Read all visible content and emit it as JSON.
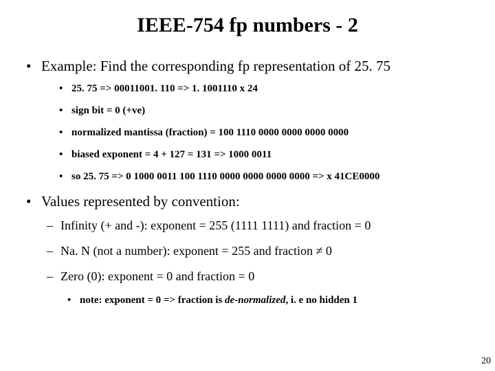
{
  "title": "IEEE-754 fp numbers - 2",
  "b1": "Example: Find the corresponding fp representation of 25. 75",
  "s1": "25. 75 => 00011001. 110 => 1. 1001110 x 24",
  "s2": "sign bit = 0 (+ve)",
  "s3": "normalized mantissa (fraction) = 100 1110 0000 0000 0000 0000",
  "s4": "biased exponent = 4 + 127 = 131 => 1000 0011",
  "s5": "so 25. 75 => 0 1000 0011 100 1110 0000 0000 0000 0000 => x 41CE0000",
  "b2": "Values represented by convention:",
  "d1": "Infinity (+ and -): exponent = 255 (1111 1111) and fraction = 0",
  "d2": "Na. N (not a number): exponent = 255 and fraction ≠ 0",
  "d3": "Zero (0): exponent = 0 and fraction = 0",
  "n1a": "note: exponent = 0  =>  fraction is ",
  "n1b": "de-normalized",
  "n1c": ", i. e no hidden 1",
  "page_number": "20"
}
